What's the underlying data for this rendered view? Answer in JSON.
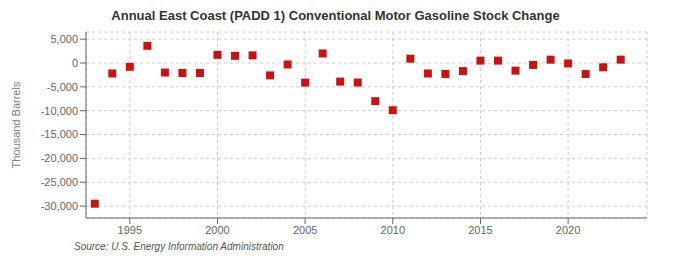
{
  "chart_data": {
    "type": "scatter",
    "title": "Annual East Coast (PADD 1) Conventional Motor Gasoline Stock Change",
    "y_label": "Thousand Barrels",
    "annotations": [
      "Source: U.S. Energy Information Administration"
    ],
    "x": [
      1993,
      1994,
      1995,
      1996,
      1997,
      1998,
      1999,
      2000,
      2001,
      2002,
      2003,
      2004,
      2005,
      2006,
      2007,
      2008,
      2009,
      2010,
      2011,
      2012,
      2013,
      2014,
      2015,
      2016,
      2017,
      2018,
      2019,
      2020,
      2021,
      2022,
      2023
    ],
    "values": [
      -29500,
      -2200,
      -800,
      3600,
      -2000,
      -2100,
      -2100,
      1700,
      1500,
      1600,
      -2600,
      -300,
      -4100,
      2000,
      -3900,
      -4100,
      -8000,
      -9900,
      900,
      -2200,
      -2300,
      -1700,
      500,
      500,
      -1600,
      -400,
      700,
      -100,
      -2300,
      -900,
      700
    ],
    "color": "#cc1111",
    "marker": "square",
    "xlim": [
      1992.5,
      2024.5
    ],
    "xticks": [
      1995,
      2000,
      2005,
      2010,
      2015,
      2020
    ],
    "ylim": [
      -32500,
      6500
    ],
    "yticks": [
      {
        "value": 5000,
        "label": "5,000"
      },
      0,
      {
        "value": -5000,
        "label": "-5,000"
      },
      {
        "value": -10000,
        "label": "-10,000"
      },
      {
        "value": -15000,
        "label": "-15,000"
      },
      {
        "value": -20000,
        "label": "-20,000"
      },
      {
        "value": -25000,
        "label": "-25,000"
      },
      {
        "value": -30000,
        "label": "-30,000"
      }
    ],
    "grid": true
  }
}
